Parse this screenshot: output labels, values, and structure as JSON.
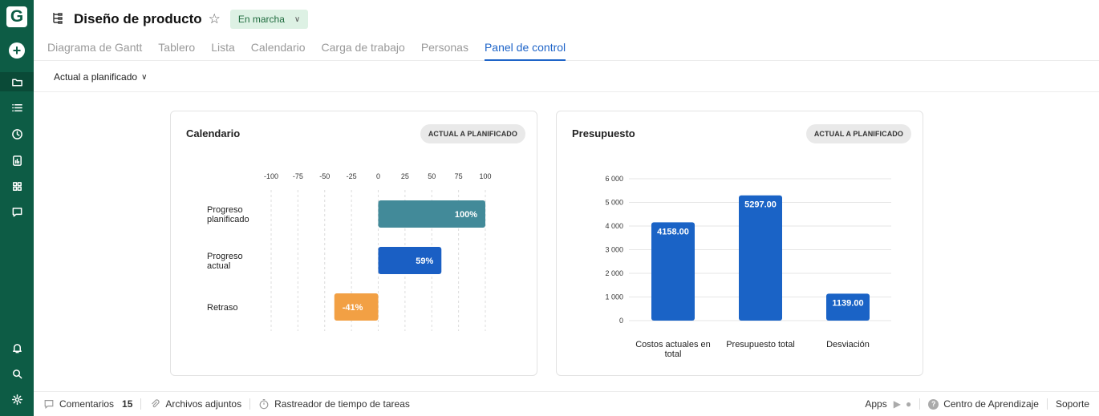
{
  "app": {
    "logo": "G"
  },
  "rail": {
    "icons": [
      "plus-icon",
      "folder-icon",
      "list-icon",
      "clock-icon",
      "report-icon",
      "grid-icon",
      "chat-icon",
      "bell-icon",
      "search-icon",
      "gear-icon"
    ]
  },
  "header": {
    "title": "Diseño de producto",
    "status": "En marcha",
    "tabs": [
      {
        "label": "Diagrama de Gantt"
      },
      {
        "label": "Tablero"
      },
      {
        "label": "Lista"
      },
      {
        "label": "Calendario"
      },
      {
        "label": "Carga de trabajo"
      },
      {
        "label": "Personas"
      },
      {
        "label": "Panel de control",
        "active": true
      }
    ]
  },
  "subbar": {
    "selector": "Actual a planificado"
  },
  "cards": {
    "calendar": {
      "title": "Calendario",
      "badge": "ACTUAL A PLANIFICADO"
    },
    "budget": {
      "title": "Presupuesto",
      "badge": "ACTUAL A PLANIFICADO"
    }
  },
  "chart_data": [
    {
      "type": "bar",
      "orientation": "horizontal",
      "categories": [
        [
          "Progreso",
          "planificado"
        ],
        [
          "Progreso",
          "actual"
        ],
        [
          "Retraso"
        ]
      ],
      "values": [
        100,
        59,
        -41
      ],
      "labels": [
        "100%",
        "59%",
        "-41%"
      ],
      "colors": [
        "#428a99",
        "#1a5fc4",
        "#f2a044"
      ],
      "xlim": [
        -100,
        100
      ],
      "ticks": [
        "-100",
        "-75",
        "-50",
        "-25",
        "0",
        "25",
        "50",
        "75",
        "100"
      ],
      "tick_values": [
        -100,
        -75,
        -50,
        -25,
        0,
        25,
        50,
        75,
        100
      ],
      "grid": true
    },
    {
      "type": "bar",
      "categories": [
        [
          "Costos actuales en",
          "total"
        ],
        [
          "Presupuesto total"
        ],
        [
          "Desviación"
        ]
      ],
      "values": [
        4158.0,
        5297.0,
        1139.0
      ],
      "labels": [
        "4158.00",
        "5297.00",
        "1139.00"
      ],
      "color": "#1a63c6",
      "ylim": [
        0,
        6000
      ],
      "yticks": [
        "0",
        "1 000",
        "2 000",
        "3 000",
        "4 000",
        "5 000",
        "6 000"
      ],
      "ytick_values": [
        0,
        1000,
        2000,
        3000,
        4000,
        5000,
        6000
      ],
      "grid": true
    }
  ],
  "footer": {
    "comments_label": "Comentarios",
    "comments_count": "15",
    "attachments_label": "Archivos adjuntos",
    "tracker_label": "Rastreador de  tiempo de tareas",
    "apps_label": "Apps",
    "learning_label": "Centro de Aprendizaje",
    "support_label": "Soporte"
  }
}
